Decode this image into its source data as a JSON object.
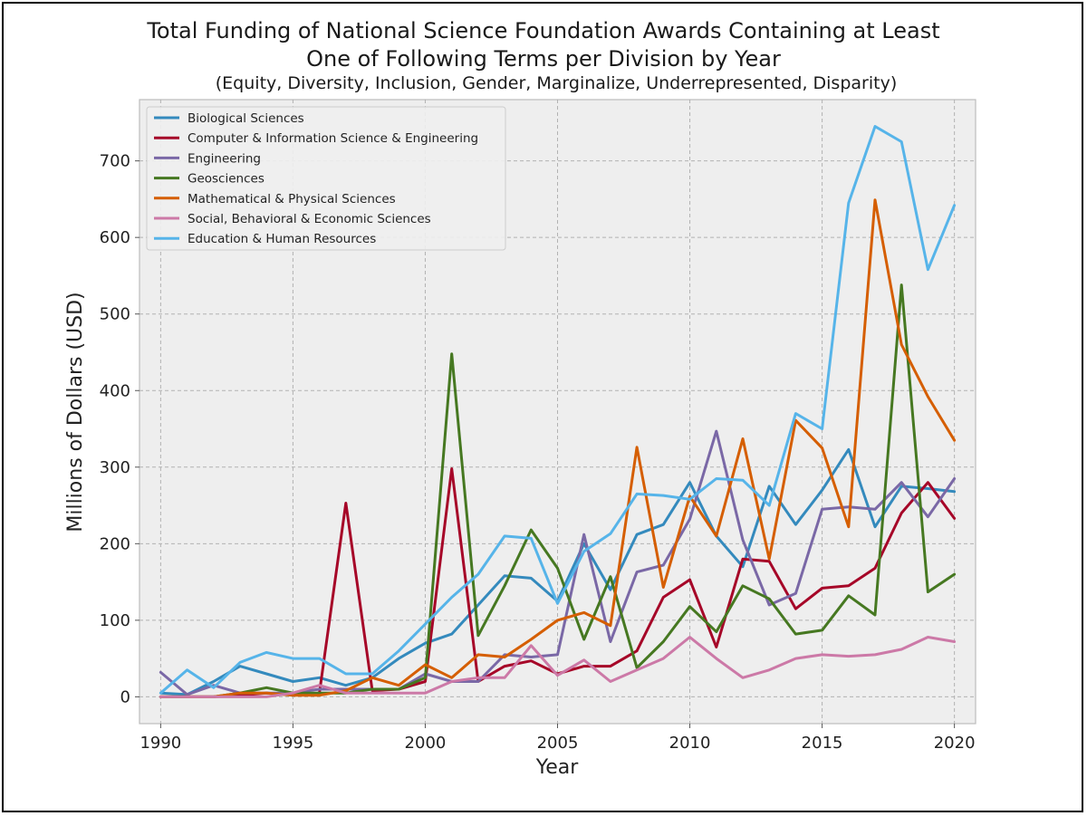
{
  "chart_data": {
    "type": "line",
    "title_line1": "Total Funding of National Science Foundation Awards Containing at Least",
    "title_line2": "One of Following Terms per Division by Year",
    "subtitle": "(Equity, Diversity, Inclusion, Gender, Marginalize, Underrepresented, Disparity)",
    "xlabel": "Year",
    "ylabel": "Millions of Dollars (USD)",
    "xlim": [
      1989.2,
      2020.8
    ],
    "ylim": [
      -35,
      780
    ],
    "xticks": [
      1990,
      1995,
      2000,
      2005,
      2010,
      2015,
      2020
    ],
    "yticks": [
      0,
      100,
      200,
      300,
      400,
      500,
      600,
      700
    ],
    "grid": true,
    "legend_position": "upper-left",
    "x": [
      1990,
      1991,
      1992,
      1993,
      1994,
      1995,
      1996,
      1997,
      1998,
      1999,
      2000,
      2001,
      2002,
      2003,
      2004,
      2005,
      2006,
      2007,
      2008,
      2009,
      2010,
      2011,
      2012,
      2013,
      2014,
      2015,
      2016,
      2017,
      2018,
      2019,
      2020
    ],
    "series": [
      {
        "name": "Biological Sciences",
        "color": "#348ABD",
        "values": [
          5,
          3,
          20,
          40,
          30,
          20,
          25,
          15,
          25,
          50,
          70,
          82,
          120,
          158,
          155,
          125,
          200,
          140,
          212,
          225,
          280,
          210,
          170,
          275,
          225,
          270,
          323,
          222,
          275,
          272,
          268
        ]
      },
      {
        "name": "Computer & Information Science & Engineering",
        "color": "#A60628",
        "values": [
          0,
          0,
          0,
          2,
          5,
          3,
          5,
          253,
          8,
          10,
          20,
          298,
          20,
          40,
          47,
          30,
          40,
          40,
          60,
          130,
          153,
          65,
          180,
          177,
          115,
          142,
          145,
          168,
          240,
          280,
          233
        ]
      },
      {
        "name": "Engineering",
        "color": "#7A68A6",
        "values": [
          32,
          3,
          15,
          5,
          5,
          5,
          10,
          10,
          10,
          10,
          30,
          20,
          20,
          55,
          52,
          55,
          212,
          72,
          163,
          172,
          232,
          347,
          205,
          120,
          135,
          245,
          248,
          245,
          280,
          235,
          285
        ]
      },
      {
        "name": "Geosciences",
        "color": "#467821",
        "values": [
          0,
          0,
          0,
          5,
          12,
          5,
          5,
          5,
          10,
          10,
          25,
          448,
          80,
          145,
          218,
          168,
          75,
          157,
          38,
          72,
          118,
          85,
          145,
          128,
          82,
          87,
          132,
          107,
          538,
          137,
          160
        ]
      },
      {
        "name": "Mathematical & Physical Sciences",
        "color": "#D55E00",
        "values": [
          0,
          0,
          0,
          5,
          5,
          2,
          2,
          8,
          25,
          15,
          42,
          25,
          55,
          52,
          75,
          100,
          110,
          93,
          326,
          143,
          262,
          210,
          337,
          180,
          361,
          325,
          222,
          649,
          460,
          392,
          335
        ]
      },
      {
        "name": "Social, Behavioral & Economic Sciences",
        "color": "#CC79A7",
        "values": [
          0,
          0,
          0,
          0,
          0,
          5,
          15,
          5,
          5,
          5,
          5,
          20,
          25,
          25,
          67,
          28,
          48,
          20,
          35,
          50,
          78,
          50,
          25,
          35,
          50,
          55,
          53,
          55,
          62,
          78,
          72
        ]
      },
      {
        "name": "Education & Human Resources",
        "color": "#56B4E9",
        "values": [
          5,
          35,
          12,
          45,
          58,
          50,
          50,
          30,
          30,
          60,
          95,
          130,
          160,
          210,
          207,
          122,
          190,
          213,
          265,
          263,
          258,
          285,
          283,
          250,
          370,
          350,
          645,
          745,
          725,
          558,
          642
        ]
      }
    ]
  }
}
